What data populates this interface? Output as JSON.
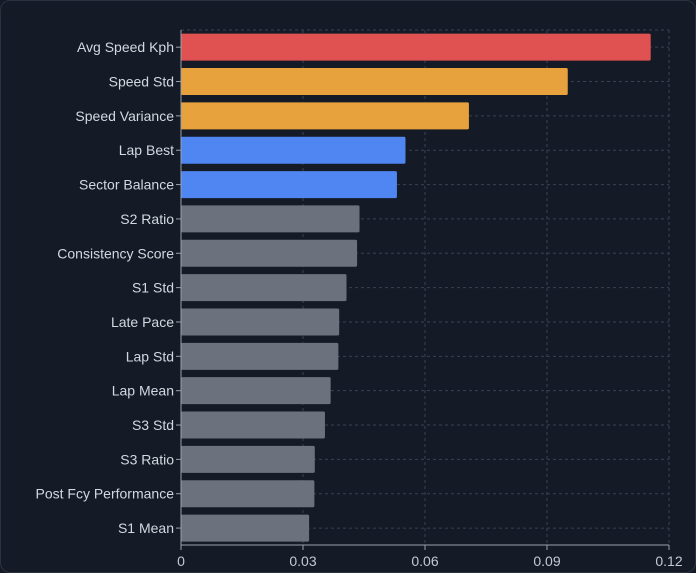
{
  "chart_data": {
    "type": "bar",
    "orientation": "horizontal",
    "title": "",
    "xlabel": "",
    "ylabel": "",
    "xlim": [
      0,
      0.12
    ],
    "grid": true,
    "x_ticks": [
      0,
      0.03,
      0.06,
      0.09,
      0.12
    ],
    "x_tick_labels": [
      "0",
      "0.03",
      "0.06",
      "0.09",
      "0.12"
    ],
    "categories": [
      "Avg Speed Kph",
      "Speed Std",
      "Speed Variance",
      "Lap Best",
      "Sector Balance",
      "S2 Ratio",
      "Consistency Score",
      "S1 Std",
      "Late Pace",
      "Lap Std",
      "Lap Mean",
      "S3 Std",
      "S3 Ratio",
      "Post Fcy Performance",
      "S1 Mean"
    ],
    "values": [
      0.1155,
      0.0951,
      0.0708,
      0.0552,
      0.0531,
      0.0439,
      0.0433,
      0.0407,
      0.0389,
      0.0387,
      0.0368,
      0.0354,
      0.0329,
      0.0328,
      0.0315
    ],
    "bar_colors": [
      "#e05252",
      "#e8a23d",
      "#e8a23d",
      "#4f86f2",
      "#4f86f2",
      "#6b727d",
      "#6b727d",
      "#6b727d",
      "#6b727d",
      "#6b727d",
      "#6b727d",
      "#6b727d",
      "#6b727d",
      "#6b727d",
      "#6b727d"
    ]
  },
  "theme": {
    "background": "#141a26",
    "axis_color": "#9aa1ad",
    "grid_color": "#3a4252"
  }
}
